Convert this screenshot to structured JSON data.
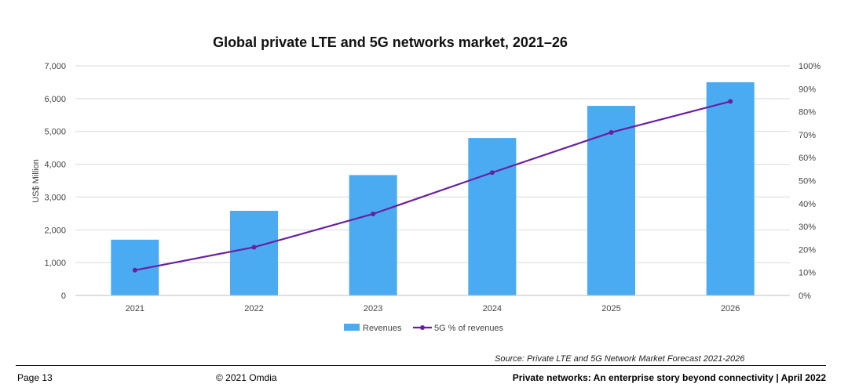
{
  "chart_data": {
    "type": "bar",
    "title": "Global private LTE and 5G networks market, 2021–26",
    "ylabel": "US$ Million",
    "categories": [
      "2021",
      "2022",
      "2023",
      "2024",
      "2025",
      "2026"
    ],
    "ylim": [
      0,
      7000
    ],
    "y_ticks": [
      "0",
      "1,000",
      "2,000",
      "3,000",
      "4,000",
      "5,000",
      "6,000",
      "7,000"
    ],
    "y2lim": [
      0,
      100
    ],
    "y2_ticks": [
      "0%",
      "10%",
      "20%",
      "30%",
      "40%",
      "50%",
      "60%",
      "70%",
      "80%",
      "90%",
      "100%"
    ],
    "grid": true,
    "legend_position": "bottom",
    "series": [
      {
        "name": "Revenues",
        "type": "bar",
        "axis": "left",
        "color": "#4aabf2",
        "values": [
          1700,
          2580,
          3670,
          4800,
          5780,
          6500
        ]
      },
      {
        "name": "5G % of revenues",
        "type": "line",
        "axis": "right",
        "color": "#6a1fa0",
        "values": [
          11,
          21,
          35.5,
          53.5,
          71,
          84.5
        ]
      }
    ]
  },
  "source": "Source: Private LTE and 5G Network Market Forecast 2021-2026",
  "footer": {
    "page": "Page 13",
    "copyright": "© 2021 Omdia",
    "document": "Private networks: An enterprise story beyond connectivity | April 2022"
  }
}
